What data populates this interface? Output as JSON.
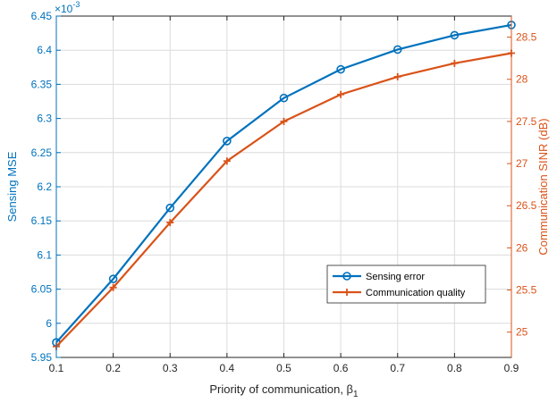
{
  "chart_data": {
    "type": "line",
    "x": [
      0.1,
      0.2,
      0.3,
      0.4,
      0.5,
      0.6,
      0.7,
      0.8,
      0.9
    ],
    "xlabel": "Priority of communication, β",
    "xlabel_subscript": "1",
    "xlim": [
      0.1,
      0.9
    ],
    "xticks": [
      0.1,
      0.2,
      0.3,
      0.4,
      0.5,
      0.6,
      0.7,
      0.8,
      0.9
    ],
    "y_left": {
      "label": "Sensing MSE",
      "lim": [
        5.95,
        6.45
      ],
      "ticks": [
        "5.95",
        "6",
        "6.05",
        "6.1",
        "6.15",
        "6.2",
        "6.25",
        "6.3",
        "6.35",
        "6.4",
        "6.45"
      ],
      "ticks_values": [
        5.95,
        6.0,
        6.05,
        6.1,
        6.15,
        6.2,
        6.25,
        6.3,
        6.35,
        6.4,
        6.45
      ],
      "multiplier_base": "×10",
      "multiplier_exp": "-3",
      "color": "#0072BD"
    },
    "y_right": {
      "label": "Communication SINR (dB)",
      "lim": [
        24.7,
        28.75
      ],
      "ticks": [
        "25",
        "25.5",
        "26",
        "26.5",
        "27",
        "27.5",
        "28",
        "28.5"
      ],
      "ticks_values": [
        25,
        25.5,
        26,
        26.5,
        27,
        27.5,
        28,
        28.5
      ],
      "color": "#D95319"
    },
    "series": [
      {
        "name": "Sensing error",
        "axis": "left",
        "marker": "circle",
        "color": "#0072BD",
        "values": [
          5.972,
          6.065,
          6.169,
          6.267,
          6.33,
          6.372,
          6.401,
          6.422,
          6.437
        ]
      },
      {
        "name": "Communication quality",
        "axis": "right",
        "marker": "plus",
        "color": "#D95319",
        "values": [
          24.83,
          25.53,
          26.3,
          27.03,
          27.5,
          27.82,
          28.03,
          28.19,
          28.31
        ]
      }
    ],
    "grid": true,
    "legend_position": "lower-right"
  }
}
